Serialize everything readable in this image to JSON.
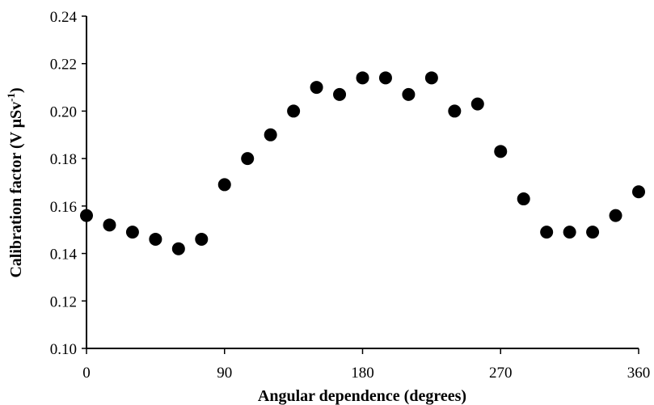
{
  "chart_data": {
    "type": "scatter",
    "xlabel": "Angular dependence (degrees)",
    "ylabel": {
      "main": "Calibration factor (V μSv",
      "sup": "-1",
      "tail": ")"
    },
    "xlim": [
      0,
      360
    ],
    "ylim": [
      0.1,
      0.24
    ],
    "xticks": [
      "0",
      "90",
      "180",
      "270",
      "360"
    ],
    "yticks": [
      "0.10",
      "0.12",
      "0.14",
      "0.16",
      "0.18",
      "0.20",
      "0.22",
      "0.24"
    ],
    "grid": false,
    "legend": "none",
    "marker_color": "#000000",
    "series": [
      {
        "x": [
          0,
          15,
          30,
          45,
          60,
          75,
          90,
          105,
          120,
          135,
          150,
          165,
          180,
          195,
          210,
          225,
          240,
          255,
          270,
          285,
          300,
          315,
          330,
          345,
          360
        ],
        "y": [
          0.156,
          0.152,
          0.149,
          0.146,
          0.142,
          0.146,
          0.169,
          0.18,
          0.19,
          0.2,
          0.21,
          0.207,
          0.214,
          0.214,
          0.207,
          0.214,
          0.2,
          0.203,
          0.183,
          0.163,
          0.149,
          0.149,
          0.149,
          0.156,
          0.166
        ]
      }
    ]
  }
}
